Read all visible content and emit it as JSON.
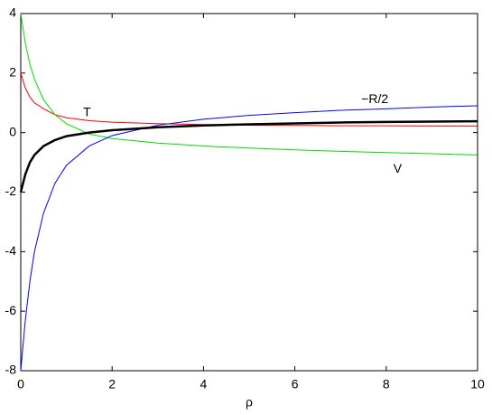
{
  "chart_data": {
    "type": "line",
    "xlabel": "ρ",
    "x": [
      0,
      0.1,
      0.2,
      0.3,
      0.5,
      0.75,
      1,
      1.5,
      2,
      3,
      4,
      5,
      6,
      7,
      8,
      9,
      10
    ],
    "series": [
      {
        "name": "T",
        "color": "#ff0000",
        "values": [
          2.0,
          1.5,
          1.2,
          1.0,
          0.8,
          0.6,
          0.5,
          0.4,
          0.35,
          0.3,
          0.27,
          0.25,
          0.24,
          0.23,
          0.23,
          0.22,
          0.22
        ]
      },
      {
        "name": "V",
        "color": "#00dd00",
        "values": [
          4.0,
          3.0,
          2.3,
          1.8,
          1.1,
          0.6,
          0.3,
          -0.05,
          -0.2,
          -0.35,
          -0.45,
          -0.52,
          -0.58,
          -0.63,
          -0.67,
          -0.71,
          -0.75
        ]
      },
      {
        "name": "−R/2",
        "color": "#0000ff",
        "values": [
          -8,
          -6.3,
          -5.0,
          -4.0,
          -2.7,
          -1.7,
          -1.1,
          -0.45,
          -0.1,
          0.25,
          0.45,
          0.58,
          0.67,
          0.75,
          0.8,
          0.86,
          0.9
        ]
      },
      {
        "color": "#000000",
        "values": [
          -2,
          -1.4,
          -1.0,
          -0.75,
          -0.45,
          -0.25,
          -0.12,
          0.0,
          0.08,
          0.18,
          0.24,
          0.28,
          0.31,
          0.34,
          0.36,
          0.37,
          0.38
        ]
      }
    ],
    "xlim": [
      0,
      10
    ],
    "xticks": [
      0,
      2,
      4,
      6,
      8,
      10
    ],
    "ylim": [
      -8,
      4
    ],
    "yticks": [
      -8,
      -6,
      -4,
      -2,
      0,
      2,
      4
    ]
  }
}
